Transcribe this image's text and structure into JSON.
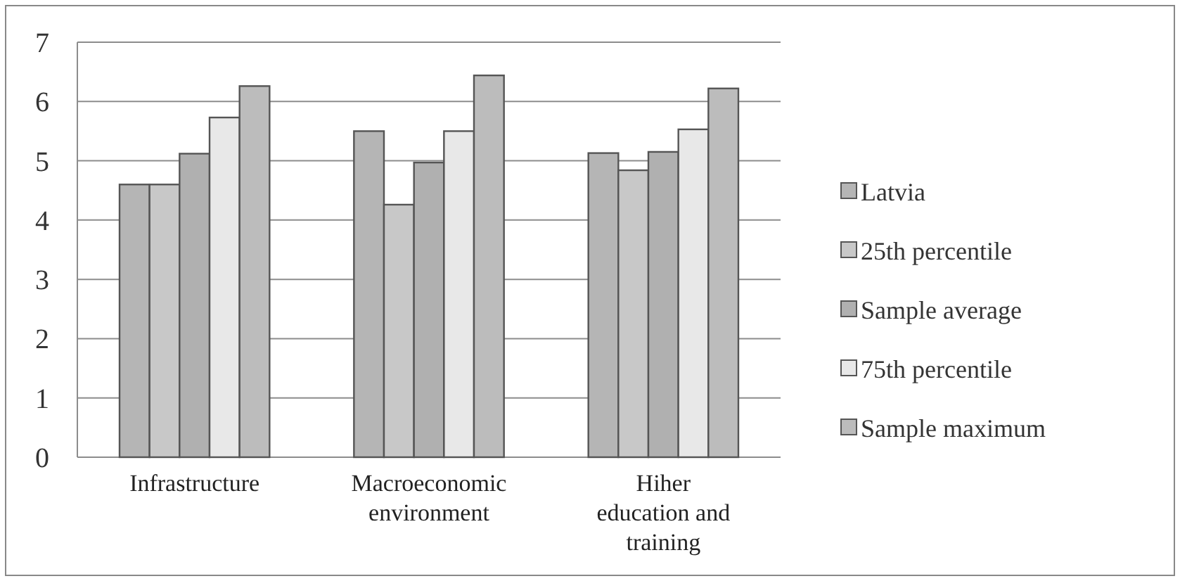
{
  "chart_data": {
    "type": "bar",
    "categories": [
      "Infrastructure",
      "Macroeconomic environment",
      "Hiher education and training"
    ],
    "series": [
      {
        "name": "Latvia",
        "color": "#b5b5b5",
        "values": [
          4.6,
          5.5,
          5.13
        ]
      },
      {
        "name": "25th percentile",
        "color": "#c8c8c8",
        "values": [
          4.6,
          4.26,
          4.84
        ]
      },
      {
        "name": "Sample average",
        "color": "#b0b0b0",
        "values": [
          5.12,
          4.97,
          5.15
        ]
      },
      {
        "name": "75th percentile",
        "color": "#e8e8e8",
        "values": [
          5.73,
          5.5,
          5.53
        ]
      },
      {
        "name": "Sample maximum",
        "color": "#bcbcbc",
        "values": [
          6.26,
          6.44,
          6.22
        ]
      }
    ],
    "ylim": [
      0,
      7
    ],
    "yticks": [
      0,
      1,
      2,
      3,
      4,
      5,
      6,
      7
    ],
    "grid": "y",
    "legend": "right"
  }
}
